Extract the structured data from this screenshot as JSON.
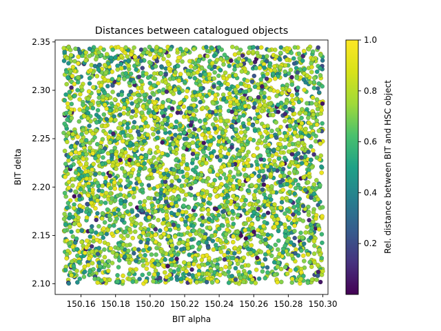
{
  "chart_data": {
    "type": "scatter",
    "title": "Distances between catalogued objects",
    "xlabel": "BIT alpha",
    "ylabel": "BIT delta",
    "xlim": [
      150.145,
      150.303
    ],
    "ylim": [
      2.089,
      2.352
    ],
    "xticks": [
      150.16,
      150.18,
      150.2,
      150.22,
      150.24,
      150.26,
      150.28,
      150.3
    ],
    "xtick_labels": [
      "150.16",
      "150.18",
      "150.20",
      "150.22",
      "150.24",
      "150.26",
      "150.28",
      "150.30"
    ],
    "yticks": [
      2.1,
      2.15,
      2.2,
      2.25,
      2.3,
      2.35
    ],
    "ytick_labels": [
      "2.10",
      "2.15",
      "2.20",
      "2.25",
      "2.30",
      "2.35"
    ],
    "point_region": {
      "x": [
        150.15,
        150.3
      ],
      "y": [
        2.1,
        2.345
      ]
    },
    "approx_point_count": 4000,
    "color_value_range": [
      0.0,
      1.0
    ],
    "dominant_color_values": [
      0.55,
      0.85
    ],
    "grid": false,
    "colormap": "viridis",
    "colorbar": {
      "label": "Rel. distance between BIT and HSC object",
      "range": [
        0.0,
        1.0
      ],
      "ticks": [
        0.2,
        0.4,
        0.6,
        0.8,
        1.0
      ],
      "tick_labels": [
        "0.2",
        "0.4",
        "0.6",
        "0.8",
        "1.0"
      ]
    },
    "colors": {
      "viridis_0": "#440154",
      "viridis_25": "#3b528b",
      "viridis_50": "#21918c",
      "viridis_75": "#5ec962",
      "viridis_100": "#fde725"
    }
  }
}
